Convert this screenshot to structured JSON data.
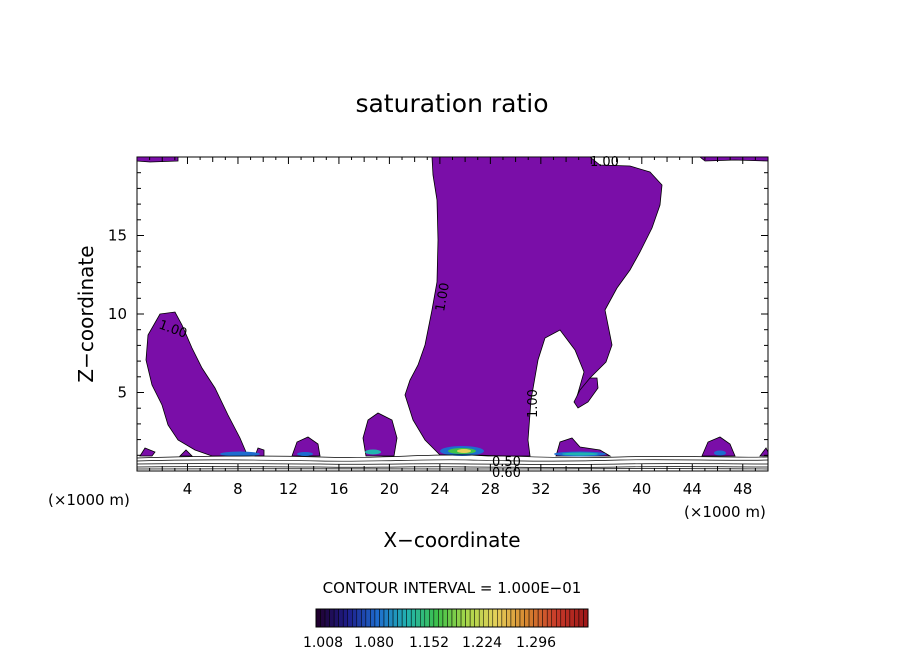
{
  "chart_data": {
    "type": "contour",
    "title": "saturation ratio",
    "xlabel": "X−coordinate",
    "ylabel": "Z−coordinate",
    "x_unit_left": "(×1000 m)",
    "x_unit_right": "(×1000 m)",
    "xlim": [
      0,
      50
    ],
    "ylim": [
      0,
      20
    ],
    "x_ticks": [
      4,
      8,
      12,
      16,
      20,
      24,
      28,
      32,
      36,
      40,
      44,
      48
    ],
    "y_ticks": [
      5,
      10,
      15
    ],
    "contour_labels": [
      {
        "text": "1.00",
        "x": 37,
        "z": 19.5
      },
      {
        "text": "1.00",
        "x": 3,
        "z": 9.5
      },
      {
        "text": "1.00",
        "x": 24,
        "z": 11
      },
      {
        "text": "1.00",
        "x": 31,
        "z": 5
      },
      {
        "text": "0.50",
        "x": 30,
        "z": 0.5
      },
      {
        "text": "0.60",
        "x": 30,
        "z": 0.1
      }
    ],
    "fill_color": "#7a0ea8",
    "contour_interval_text": "CONTOUR INTERVAL = 1.000E−01",
    "colorbar": {
      "labels": [
        "1.008",
        "1.080",
        "1.152",
        "1.224",
        "1.296"
      ],
      "colors": [
        "#200030",
        "#1e1e8a",
        "#1e6ccf",
        "#22b3b0",
        "#3dc24a",
        "#a9d64a",
        "#e5d05a",
        "#d7862f",
        "#c83b2a",
        "#a01818"
      ]
    }
  }
}
